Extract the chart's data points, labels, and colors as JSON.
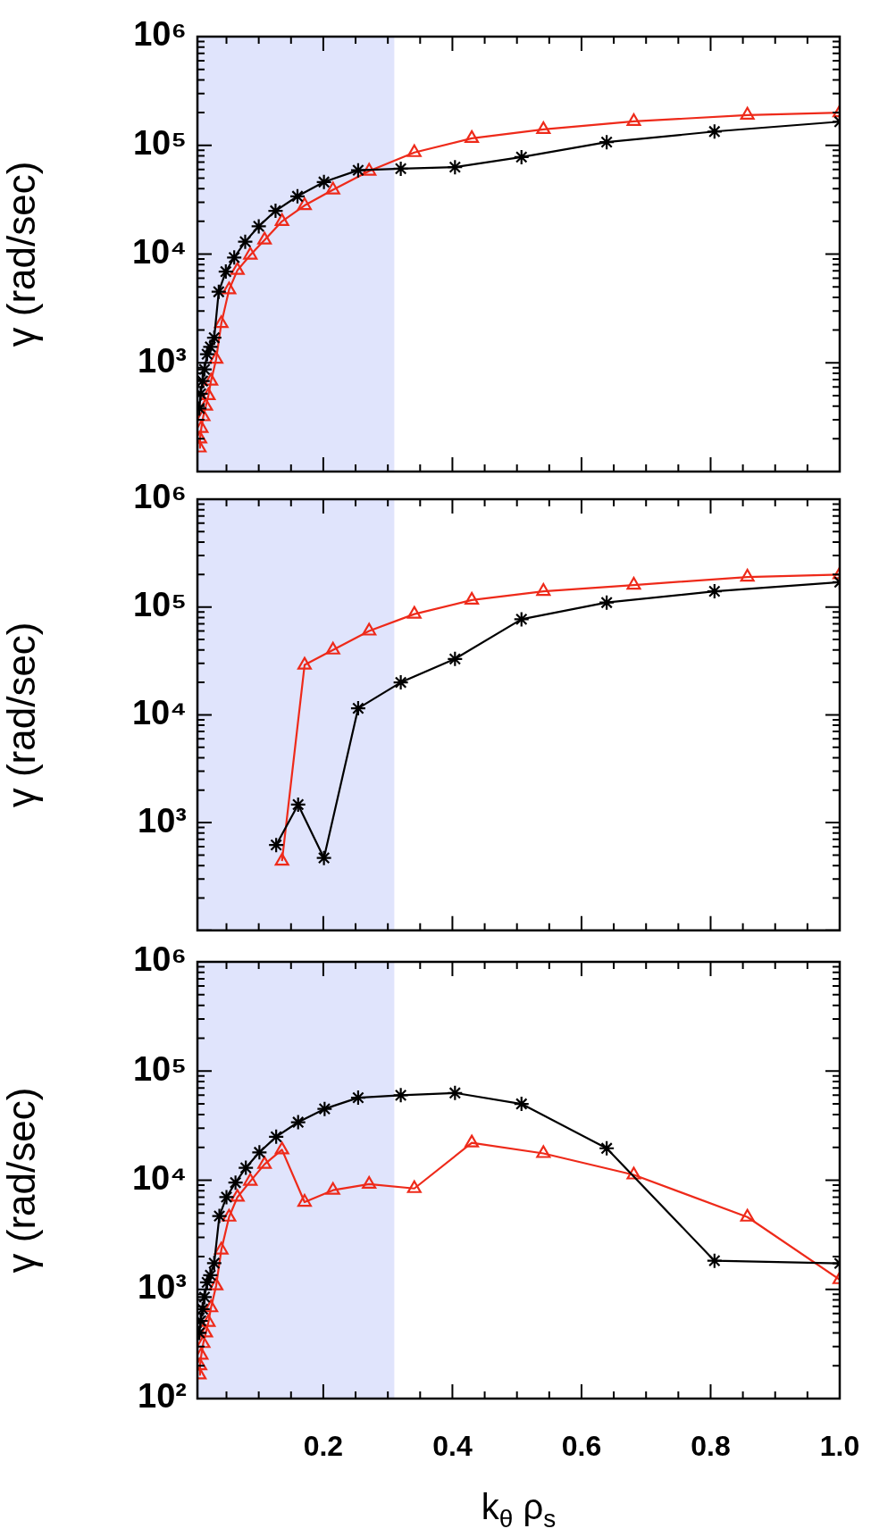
{
  "chart_data": [
    {
      "type": "line",
      "ylabel": "γ (rad/sec)",
      "log": "y",
      "tick_labels": "y",
      "xlim": [
        0.005,
        1.0
      ],
      "xticks": [
        {
          "value": 0.05,
          "label": null
        },
        {
          "value": 0.1,
          "label": null
        },
        {
          "value": 0.15,
          "label": null
        },
        {
          "value": 0.2,
          "label": null
        },
        {
          "value": 0.25,
          "label": null
        },
        {
          "value": 0.3,
          "label": null
        },
        {
          "value": 0.35,
          "label": null
        },
        {
          "value": 0.4,
          "label": null
        },
        {
          "value": 0.45,
          "label": null
        },
        {
          "value": 0.5,
          "label": null
        },
        {
          "value": 0.55,
          "label": null
        },
        {
          "value": 0.6,
          "label": null
        },
        {
          "value": 0.65,
          "label": null
        },
        {
          "value": 0.7,
          "label": null
        },
        {
          "value": 0.75,
          "label": null
        },
        {
          "value": 0.8,
          "label": null
        },
        {
          "value": 0.85,
          "label": null
        },
        {
          "value": 0.9,
          "label": null
        },
        {
          "value": 0.95,
          "label": null
        },
        {
          "value": 1.0,
          "label": null
        }
      ],
      "ylim": [
        100,
        1000000
      ],
      "yticks": [
        {
          "value": 100,
          "label": null
        },
        {
          "value": 200,
          "label": null
        },
        {
          "value": 300,
          "label": null
        },
        {
          "value": 400,
          "label": null
        },
        {
          "value": 500,
          "label": null
        },
        {
          "value": 600,
          "label": null
        },
        {
          "value": 700,
          "label": null
        },
        {
          "value": 800,
          "label": null
        },
        {
          "value": 900,
          "label": null
        },
        {
          "value": 1000,
          "label": "10³"
        },
        {
          "value": 2000,
          "label": null
        },
        {
          "value": 3000,
          "label": null
        },
        {
          "value": 4000,
          "label": null
        },
        {
          "value": 5000,
          "label": null
        },
        {
          "value": 6000,
          "label": null
        },
        {
          "value": 7000,
          "label": null
        },
        {
          "value": 8000,
          "label": null
        },
        {
          "value": 9000,
          "label": null
        },
        {
          "value": 10000,
          "label": "10⁴"
        },
        {
          "value": 20000,
          "label": null
        },
        {
          "value": 30000,
          "label": null
        },
        {
          "value": 40000,
          "label": null
        },
        {
          "value": 50000,
          "label": null
        },
        {
          "value": 60000,
          "label": null
        },
        {
          "value": 70000,
          "label": null
        },
        {
          "value": 80000,
          "label": null
        },
        {
          "value": 90000,
          "label": null
        },
        {
          "value": 100000,
          "label": "10⁵"
        },
        {
          "value": 200000,
          "label": null
        },
        {
          "value": 300000,
          "label": null
        },
        {
          "value": 400000,
          "label": null
        },
        {
          "value": 500000,
          "label": null
        },
        {
          "value": 600000,
          "label": null
        },
        {
          "value": 700000,
          "label": null
        },
        {
          "value": 800000,
          "label": null
        },
        {
          "value": 900000,
          "label": null
        },
        {
          "value": 1000000,
          "label": "10⁶"
        }
      ],
      "bands": [
        {
          "axis": "x",
          "from": 0.005,
          "to": 0.31,
          "color": "#e0e4fc"
        }
      ],
      "series": [
        {
          "color": "#000000",
          "marker": "cross",
          "x": [
            0.008,
            0.01,
            0.013,
            0.016,
            0.02,
            0.025,
            0.031,
            0.038,
            0.049,
            0.062,
            0.079,
            0.1,
            0.126,
            0.16,
            0.201,
            0.254,
            0.32,
            0.404,
            0.507,
            0.639,
            0.806,
            1.0
          ],
          "values": [
            380,
            520,
            680,
            870,
            1200,
            1400,
            1700,
            4500,
            6900,
            9300,
            13000,
            18000,
            25000,
            34000,
            46000,
            59000,
            61000,
            63000,
            78000,
            107000,
            134000,
            165000
          ]
        },
        {
          "color": "#ee2a1a",
          "marker": "triangle",
          "x": [
            0.008,
            0.009,
            0.011,
            0.014,
            0.018,
            0.022,
            0.026,
            0.034,
            0.042,
            0.054,
            0.067,
            0.087,
            0.109,
            0.136,
            0.171,
            0.215,
            0.271,
            0.341,
            0.43,
            0.541,
            0.681,
            0.857,
            1.0
          ],
          "values": [
            165,
            200,
            250,
            320,
            400,
            500,
            680,
            1080,
            2300,
            4700,
            7100,
            9800,
            13500,
            20000,
            28000,
            39000,
            58000,
            86000,
            116000,
            140000,
            166000,
            190000,
            200000
          ]
        }
      ]
    },
    {
      "type": "line",
      "ylabel": "γ (rad/sec)",
      "log": "y",
      "tick_labels": "y",
      "xlim": [
        0.005,
        1.0
      ],
      "xticks": [
        {
          "value": 0.05,
          "label": null
        },
        {
          "value": 0.1,
          "label": null
        },
        {
          "value": 0.15,
          "label": null
        },
        {
          "value": 0.2,
          "label": null
        },
        {
          "value": 0.25,
          "label": null
        },
        {
          "value": 0.3,
          "label": null
        },
        {
          "value": 0.35,
          "label": null
        },
        {
          "value": 0.4,
          "label": null
        },
        {
          "value": 0.45,
          "label": null
        },
        {
          "value": 0.5,
          "label": null
        },
        {
          "value": 0.55,
          "label": null
        },
        {
          "value": 0.6,
          "label": null
        },
        {
          "value": 0.65,
          "label": null
        },
        {
          "value": 0.7,
          "label": null
        },
        {
          "value": 0.75,
          "label": null
        },
        {
          "value": 0.8,
          "label": null
        },
        {
          "value": 0.85,
          "label": null
        },
        {
          "value": 0.9,
          "label": null
        },
        {
          "value": 0.95,
          "label": null
        },
        {
          "value": 1.0,
          "label": null
        }
      ],
      "ylim": [
        100,
        1000000
      ],
      "yticks": [
        {
          "value": 100,
          "label": null
        },
        {
          "value": 200,
          "label": null
        },
        {
          "value": 300,
          "label": null
        },
        {
          "value": 400,
          "label": null
        },
        {
          "value": 500,
          "label": null
        },
        {
          "value": 600,
          "label": null
        },
        {
          "value": 700,
          "label": null
        },
        {
          "value": 800,
          "label": null
        },
        {
          "value": 900,
          "label": null
        },
        {
          "value": 1000,
          "label": "10³"
        },
        {
          "value": 2000,
          "label": null
        },
        {
          "value": 3000,
          "label": null
        },
        {
          "value": 4000,
          "label": null
        },
        {
          "value": 5000,
          "label": null
        },
        {
          "value": 6000,
          "label": null
        },
        {
          "value": 7000,
          "label": null
        },
        {
          "value": 8000,
          "label": null
        },
        {
          "value": 9000,
          "label": null
        },
        {
          "value": 10000,
          "label": "10⁴"
        },
        {
          "value": 20000,
          "label": null
        },
        {
          "value": 30000,
          "label": null
        },
        {
          "value": 40000,
          "label": null
        },
        {
          "value": 50000,
          "label": null
        },
        {
          "value": 60000,
          "label": null
        },
        {
          "value": 70000,
          "label": null
        },
        {
          "value": 80000,
          "label": null
        },
        {
          "value": 90000,
          "label": null
        },
        {
          "value": 100000,
          "label": "10⁵"
        },
        {
          "value": 200000,
          "label": null
        },
        {
          "value": 300000,
          "label": null
        },
        {
          "value": 400000,
          "label": null
        },
        {
          "value": 500000,
          "label": null
        },
        {
          "value": 600000,
          "label": null
        },
        {
          "value": 700000,
          "label": null
        },
        {
          "value": 800000,
          "label": null
        },
        {
          "value": 900000,
          "label": null
        },
        {
          "value": 1000000,
          "label": "10⁶"
        }
      ],
      "bands": [
        {
          "axis": "x",
          "from": 0.005,
          "to": 0.31,
          "color": "#e0e4fc"
        }
      ],
      "series": [
        {
          "color": "#000000",
          "marker": "cross",
          "x": [
            0.127,
            0.161,
            0.201,
            0.254,
            0.32,
            0.404,
            0.507,
            0.639,
            0.806,
            1.0
          ],
          "values": [
            620,
            1470,
            470,
            11500,
            20000,
            33000,
            77000,
            110000,
            140000,
            170000
          ]
        },
        {
          "color": "#ee2a1a",
          "marker": "triangle",
          "x": [
            0.136,
            0.171,
            0.215,
            0.271,
            0.341,
            0.43,
            0.541,
            0.681,
            0.857,
            1.0
          ],
          "values": [
            440,
            29000,
            40000,
            60000,
            86000,
            116000,
            140000,
            160000,
            190000,
            200000
          ]
        }
      ]
    },
    {
      "type": "line",
      "ylabel": "γ (rad/sec)",
      "xlabel": "k$_{θ}$ ρ$_{s}$",
      "log": "y",
      "xlim": [
        0.005,
        1.0
      ],
      "xticks": [
        {
          "value": 0.05,
          "label": null
        },
        {
          "value": 0.1,
          "label": null
        },
        {
          "value": 0.15,
          "label": null
        },
        {
          "value": 0.2,
          "label": "0.2"
        },
        {
          "value": 0.25,
          "label": null
        },
        {
          "value": 0.3,
          "label": null
        },
        {
          "value": 0.35,
          "label": null
        },
        {
          "value": 0.4,
          "label": "0.4"
        },
        {
          "value": 0.45,
          "label": null
        },
        {
          "value": 0.5,
          "label": null
        },
        {
          "value": 0.55,
          "label": null
        },
        {
          "value": 0.6,
          "label": "0.6"
        },
        {
          "value": 0.65,
          "label": null
        },
        {
          "value": 0.7,
          "label": null
        },
        {
          "value": 0.75,
          "label": null
        },
        {
          "value": 0.8,
          "label": "0.8"
        },
        {
          "value": 0.85,
          "label": null
        },
        {
          "value": 0.9,
          "label": null
        },
        {
          "value": 0.95,
          "label": null
        },
        {
          "value": 1.0,
          "label": "1.0"
        }
      ],
      "ylim": [
        100,
        1000000
      ],
      "yticks": [
        {
          "value": 100,
          "label": "10²"
        },
        {
          "value": 200,
          "label": null
        },
        {
          "value": 300,
          "label": null
        },
        {
          "value": 400,
          "label": null
        },
        {
          "value": 500,
          "label": null
        },
        {
          "value": 600,
          "label": null
        },
        {
          "value": 700,
          "label": null
        },
        {
          "value": 800,
          "label": null
        },
        {
          "value": 900,
          "label": null
        },
        {
          "value": 1000,
          "label": "10³"
        },
        {
          "value": 2000,
          "label": null
        },
        {
          "value": 3000,
          "label": null
        },
        {
          "value": 4000,
          "label": null
        },
        {
          "value": 5000,
          "label": null
        },
        {
          "value": 6000,
          "label": null
        },
        {
          "value": 7000,
          "label": null
        },
        {
          "value": 8000,
          "label": null
        },
        {
          "value": 9000,
          "label": null
        },
        {
          "value": 10000,
          "label": "10⁴"
        },
        {
          "value": 20000,
          "label": null
        },
        {
          "value": 30000,
          "label": null
        },
        {
          "value": 40000,
          "label": null
        },
        {
          "value": 50000,
          "label": null
        },
        {
          "value": 60000,
          "label": null
        },
        {
          "value": 70000,
          "label": null
        },
        {
          "value": 80000,
          "label": null
        },
        {
          "value": 90000,
          "label": null
        },
        {
          "value": 100000,
          "label": "10⁵"
        },
        {
          "value": 200000,
          "label": null
        },
        {
          "value": 300000,
          "label": null
        },
        {
          "value": 400000,
          "label": null
        },
        {
          "value": 500000,
          "label": null
        },
        {
          "value": 600000,
          "label": null
        },
        {
          "value": 700000,
          "label": null
        },
        {
          "value": 800000,
          "label": null
        },
        {
          "value": 900000,
          "label": null
        },
        {
          "value": 1000000,
          "label": "10⁶"
        }
      ],
      "bands": [
        {
          "axis": "x",
          "from": 0.005,
          "to": 0.31,
          "color": "#e0e4fc"
        }
      ],
      "series": [
        {
          "color": "#000000",
          "marker": "cross",
          "x": [
            0.008,
            0.01,
            0.013,
            0.016,
            0.02,
            0.025,
            0.031,
            0.039,
            0.05,
            0.064,
            0.08,
            0.101,
            0.127,
            0.161,
            0.202,
            0.254,
            0.32,
            0.404,
            0.507,
            0.639,
            0.806,
            1.0
          ],
          "values": [
            400,
            515,
            660,
            850,
            1160,
            1350,
            1740,
            4700,
            7000,
            9500,
            13000,
            18000,
            25000,
            34000,
            45000,
            57000,
            60000,
            63000,
            50000,
            19600,
            1830,
            1730
          ]
        },
        {
          "color": "#ee2a1a",
          "marker": "triangle",
          "x": [
            0.008,
            0.009,
            0.011,
            0.014,
            0.018,
            0.022,
            0.026,
            0.034,
            0.042,
            0.054,
            0.067,
            0.087,
            0.109,
            0.136,
            0.171,
            0.215,
            0.271,
            0.341,
            0.43,
            0.541,
            0.681,
            0.857,
            1.0
          ],
          "values": [
            165,
            200,
            250,
            320,
            400,
            500,
            680,
            1080,
            2300,
            4600,
            7000,
            9800,
            14000,
            19000,
            6300,
            8100,
            9200,
            8400,
            22000,
            17600,
            11200,
            4600,
            1230
          ]
        }
      ]
    }
  ]
}
